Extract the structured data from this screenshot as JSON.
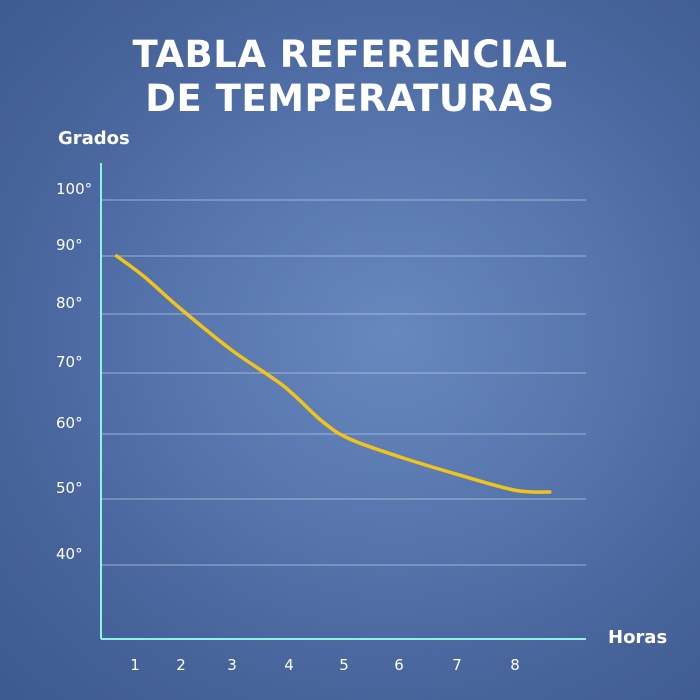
{
  "chart_data": {
    "type": "line",
    "title_lines": [
      "TABLA REFERENCIAL",
      "DE TEMPERATURAS"
    ],
    "xlabel": "Horas",
    "ylabel": "Grados",
    "x_ticks": [
      "1",
      "2",
      "3",
      "4",
      "5",
      "6",
      "7",
      "8"
    ],
    "y_ticks": [
      "100°",
      "90°",
      "80°",
      "70°",
      "60°",
      "50°",
      "40°"
    ],
    "ylim": [
      40,
      100
    ],
    "grid": true,
    "legend": "none",
    "series": [
      {
        "color": "#f2c31a",
        "points": [
          {
            "x": 0.6,
            "y": 90
          },
          {
            "x": 1.2,
            "y": 86.5
          },
          {
            "x": 2.0,
            "y": 81
          },
          {
            "x": 3.0,
            "y": 74
          },
          {
            "x": 3.9,
            "y": 68
          },
          {
            "x": 4.6,
            "y": 62
          },
          {
            "x": 5.1,
            "y": 59
          },
          {
            "x": 6.0,
            "y": 56
          },
          {
            "x": 7.0,
            "y": 53
          },
          {
            "x": 8.0,
            "y": 50.3
          },
          {
            "x": 8.6,
            "y": 50
          }
        ]
      }
    ],
    "colors": {
      "background": "#5676ad",
      "axis": "#8ff3e1",
      "grid": "#b6c9e6",
      "line": "#f2c31a",
      "text": "#ffffff"
    }
  }
}
